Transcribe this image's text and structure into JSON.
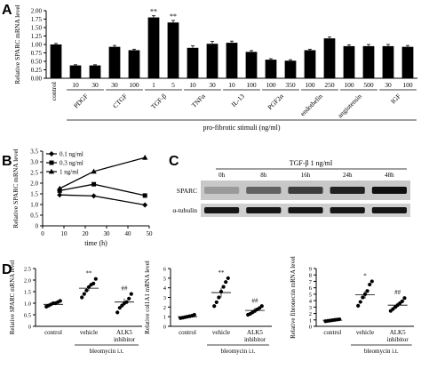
{
  "panels": {
    "A": {
      "letter": "A"
    },
    "B": {
      "letter": "B"
    },
    "C": {
      "letter": "C"
    },
    "D": {
      "letter": "D"
    }
  },
  "chart_data": [
    {
      "id": "A",
      "type": "bar",
      "ylabel": "Relative SPARC mRNA level",
      "ylim": [
        0,
        2.0
      ],
      "yticks": [
        "0.00",
        "0.25",
        "0.50",
        "0.75",
        "1.00",
        "1.25",
        "1.50",
        "1.75",
        "2.00"
      ],
      "xlabel": "pro-fibrotic stimuli (ng/ml)",
      "categories": [
        "control",
        "10",
        "30",
        "30",
        "100",
        "1",
        "5",
        "10",
        "30",
        "10",
        "100",
        "100",
        "350",
        "100",
        "250",
        "100",
        "500",
        "30",
        "100"
      ],
      "values": [
        1.0,
        0.38,
        0.38,
        0.93,
        0.83,
        1.8,
        1.65,
        0.9,
        1.02,
        1.05,
        0.78,
        0.55,
        0.52,
        0.83,
        1.18,
        0.95,
        0.95,
        0.95,
        0.93
      ],
      "errors": [
        0.03,
        0.02,
        0.02,
        0.04,
        0.03,
        0.05,
        0.06,
        0.06,
        0.07,
        0.05,
        0.04,
        0.03,
        0.03,
        0.03,
        0.04,
        0.04,
        0.05,
        0.05,
        0.04
      ],
      "significance": [
        "",
        "",
        "",
        "",
        "",
        "**",
        "**",
        "",
        "",
        "",
        "",
        "",
        "",
        "",
        "",
        "",
        "",
        "",
        ""
      ],
      "groups": [
        {
          "name": "PDGF",
          "start": 1,
          "end": 2
        },
        {
          "name": "CTGF",
          "start": 3,
          "end": 4
        },
        {
          "name": "TGF-β",
          "start": 5,
          "end": 6
        },
        {
          "name": "TNFα",
          "start": 7,
          "end": 8
        },
        {
          "name": "IL-13",
          "start": 9,
          "end": 10
        },
        {
          "name": "PGF2α",
          "start": 11,
          "end": 12
        },
        {
          "name": "endothelin",
          "start": 13,
          "end": 14
        },
        {
          "name": "angiotensin",
          "start": 15,
          "end": 16
        },
        {
          "name": "IGF",
          "start": 17,
          "end": 18
        }
      ],
      "color": "#000000",
      "grid": false
    },
    {
      "id": "B",
      "type": "line",
      "ylabel": "Relative SPARC mRNA level",
      "xlabel": "time (h)",
      "x": [
        8,
        24,
        48
      ],
      "xlim": [
        0,
        50
      ],
      "xticks": [
        0,
        10,
        20,
        30,
        40,
        50
      ],
      "ylim": [
        0,
        3.5
      ],
      "yticks": [
        "0",
        "0.5",
        "1.0",
        "1.5",
        "2.0",
        "2.5",
        "3.0",
        "3.5"
      ],
      "series": [
        {
          "name": "0.1 ng/ml",
          "marker": "diamond",
          "values": [
            1.45,
            1.4,
            0.98
          ],
          "errors": [
            0.05,
            0.05,
            0.05
          ]
        },
        {
          "name": "0.3 ng/ml",
          "marker": "square",
          "values": [
            1.65,
            1.95,
            1.42
          ],
          "errors": [
            0.05,
            0.05,
            0.06
          ]
        },
        {
          "name": "1 ng/ml",
          "marker": "triangle",
          "values": [
            1.75,
            2.55,
            3.2
          ],
          "errors": [
            0.08,
            0.08,
            0.12
          ]
        }
      ],
      "legend": "top-left"
    },
    {
      "id": "D1",
      "type": "scatter",
      "ylabel": "Relative SPARC mRNA level",
      "ylim": [
        0,
        2.5
      ],
      "yticks": [
        "0",
        "0.5",
        "1.0",
        "1.5",
        "2.0",
        "2.5"
      ],
      "categories": [
        "control",
        "vehicle",
        "ALK5 inhibitor"
      ],
      "bracket": "bleomycin i.t.",
      "means": [
        0.95,
        1.65,
        1.05
      ],
      "sem": [
        0,
        0.12,
        0.15
      ],
      "significance": [
        "",
        "**",
        "##"
      ],
      "points": [
        [
          0.85,
          0.9,
          0.95,
          1.0,
          1.0,
          1.05,
          1.1
        ],
        [
          1.25,
          1.4,
          1.55,
          1.7,
          1.8,
          1.85,
          2.05
        ],
        [
          0.6,
          0.8,
          0.9,
          1.0,
          1.05,
          1.2,
          1.4
        ]
      ]
    },
    {
      "id": "D2",
      "type": "scatter",
      "ylabel": "Relative col1A1 mRNA level",
      "ylim": [
        0,
        6
      ],
      "yticks": [
        "0",
        "1",
        "2",
        "3",
        "4",
        "5",
        "6"
      ],
      "categories": [
        "control",
        "vehicle",
        "ALK5 inhibitor"
      ],
      "bracket": "bleomycin i.t.",
      "means": [
        1.0,
        3.5,
        1.65
      ],
      "sem": [
        0,
        0.5,
        0.25
      ],
      "significance": [
        "",
        "**",
        "##"
      ],
      "points": [
        [
          0.85,
          0.9,
          0.95,
          1.0,
          1.05,
          1.1,
          1.2
        ],
        [
          2.1,
          2.5,
          3.0,
          3.6,
          4.1,
          4.6,
          5.0
        ],
        [
          1.2,
          1.3,
          1.45,
          1.6,
          1.75,
          1.9,
          2.1
        ]
      ]
    },
    {
      "id": "D3",
      "type": "scatter",
      "ylabel": "Relative fibronectin mRNA level",
      "ylim": [
        0,
        9
      ],
      "yticks": [
        "0",
        "1",
        "2",
        "3",
        "4",
        "5",
        "6",
        "7",
        "8",
        "9"
      ],
      "categories": [
        "control",
        "vehicle",
        "ALK5 inhibitor"
      ],
      "bracket": "bleomycin i.t.",
      "means": [
        0.95,
        4.9,
        3.3
      ],
      "sem": [
        0,
        0.6,
        0.35
      ],
      "significance": [
        "",
        "*",
        "##"
      ],
      "points": [
        [
          0.8,
          0.85,
          0.9,
          0.95,
          1.0,
          1.05,
          1.1
        ],
        [
          3.2,
          3.8,
          4.5,
          5.0,
          5.5,
          6.5,
          7.0
        ],
        [
          2.4,
          2.7,
          3.0,
          3.3,
          3.6,
          3.9,
          4.4
        ]
      ]
    }
  ],
  "blot": {
    "treatment": "TGF-β 1 ng/ml",
    "lanes": [
      "0h",
      "8h",
      "16h",
      "24h",
      "48h"
    ],
    "rows": [
      "SPARC",
      "α-tubulin"
    ],
    "sparc_intensity": [
      0.25,
      0.55,
      0.75,
      0.9,
      1.0
    ]
  }
}
